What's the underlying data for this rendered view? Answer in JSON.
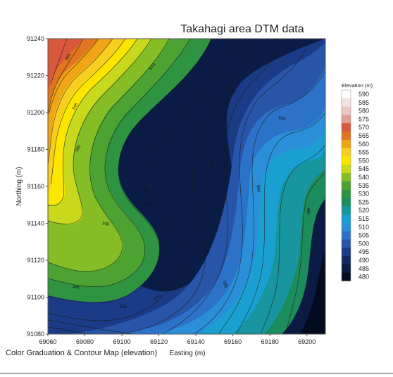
{
  "caption": "Color Graduation & Contour Map (elevation)",
  "chart_data": {
    "type": "heatmap",
    "title": "Takahagi area DTM data",
    "xlabel": "Easting (m)",
    "ylabel": "Northing (m)",
    "xlim": [
      69060,
      69210
    ],
    "ylim": [
      91080,
      91240
    ],
    "x_ticks": [
      69060,
      69080,
      69100,
      69120,
      69140,
      69160,
      69180,
      69200
    ],
    "y_ticks": [
      91080,
      91100,
      91120,
      91140,
      91160,
      91180,
      91200,
      91220,
      91240
    ],
    "colorbar": {
      "title": "Elevation (m)",
      "levels": [
        590,
        585,
        580,
        575,
        570,
        565,
        560,
        555,
        550,
        545,
        540,
        535,
        530,
        525,
        520,
        515,
        510,
        505,
        500,
        495,
        490,
        485,
        480
      ],
      "colors": [
        "#ffffff",
        "#f3e3e3",
        "#ebc6c2",
        "#e09c90",
        "#d9573a",
        "#e2751f",
        "#f0a517",
        "#f9cf1f",
        "#fce600",
        "#c8d81d",
        "#86bd27",
        "#4da332",
        "#2e9441",
        "#1d8c5d",
        "#1796a0",
        "#1aa0d0",
        "#2a8fd8",
        "#2b72c8",
        "#2855a7",
        "#1b3b86",
        "#112a66",
        "#0a1c45",
        "#050b1f"
      ]
    },
    "contour_labels": [
      "565",
      "545",
      "580",
      "540",
      "570",
      "560",
      "550",
      "530",
      "515",
      "520",
      "510",
      "505",
      "500",
      "490",
      "495",
      "525",
      "535"
    ],
    "grid": false,
    "legend": "right"
  },
  "colors": {
    "high": "#d9573a",
    "low": "#050b1f"
  }
}
